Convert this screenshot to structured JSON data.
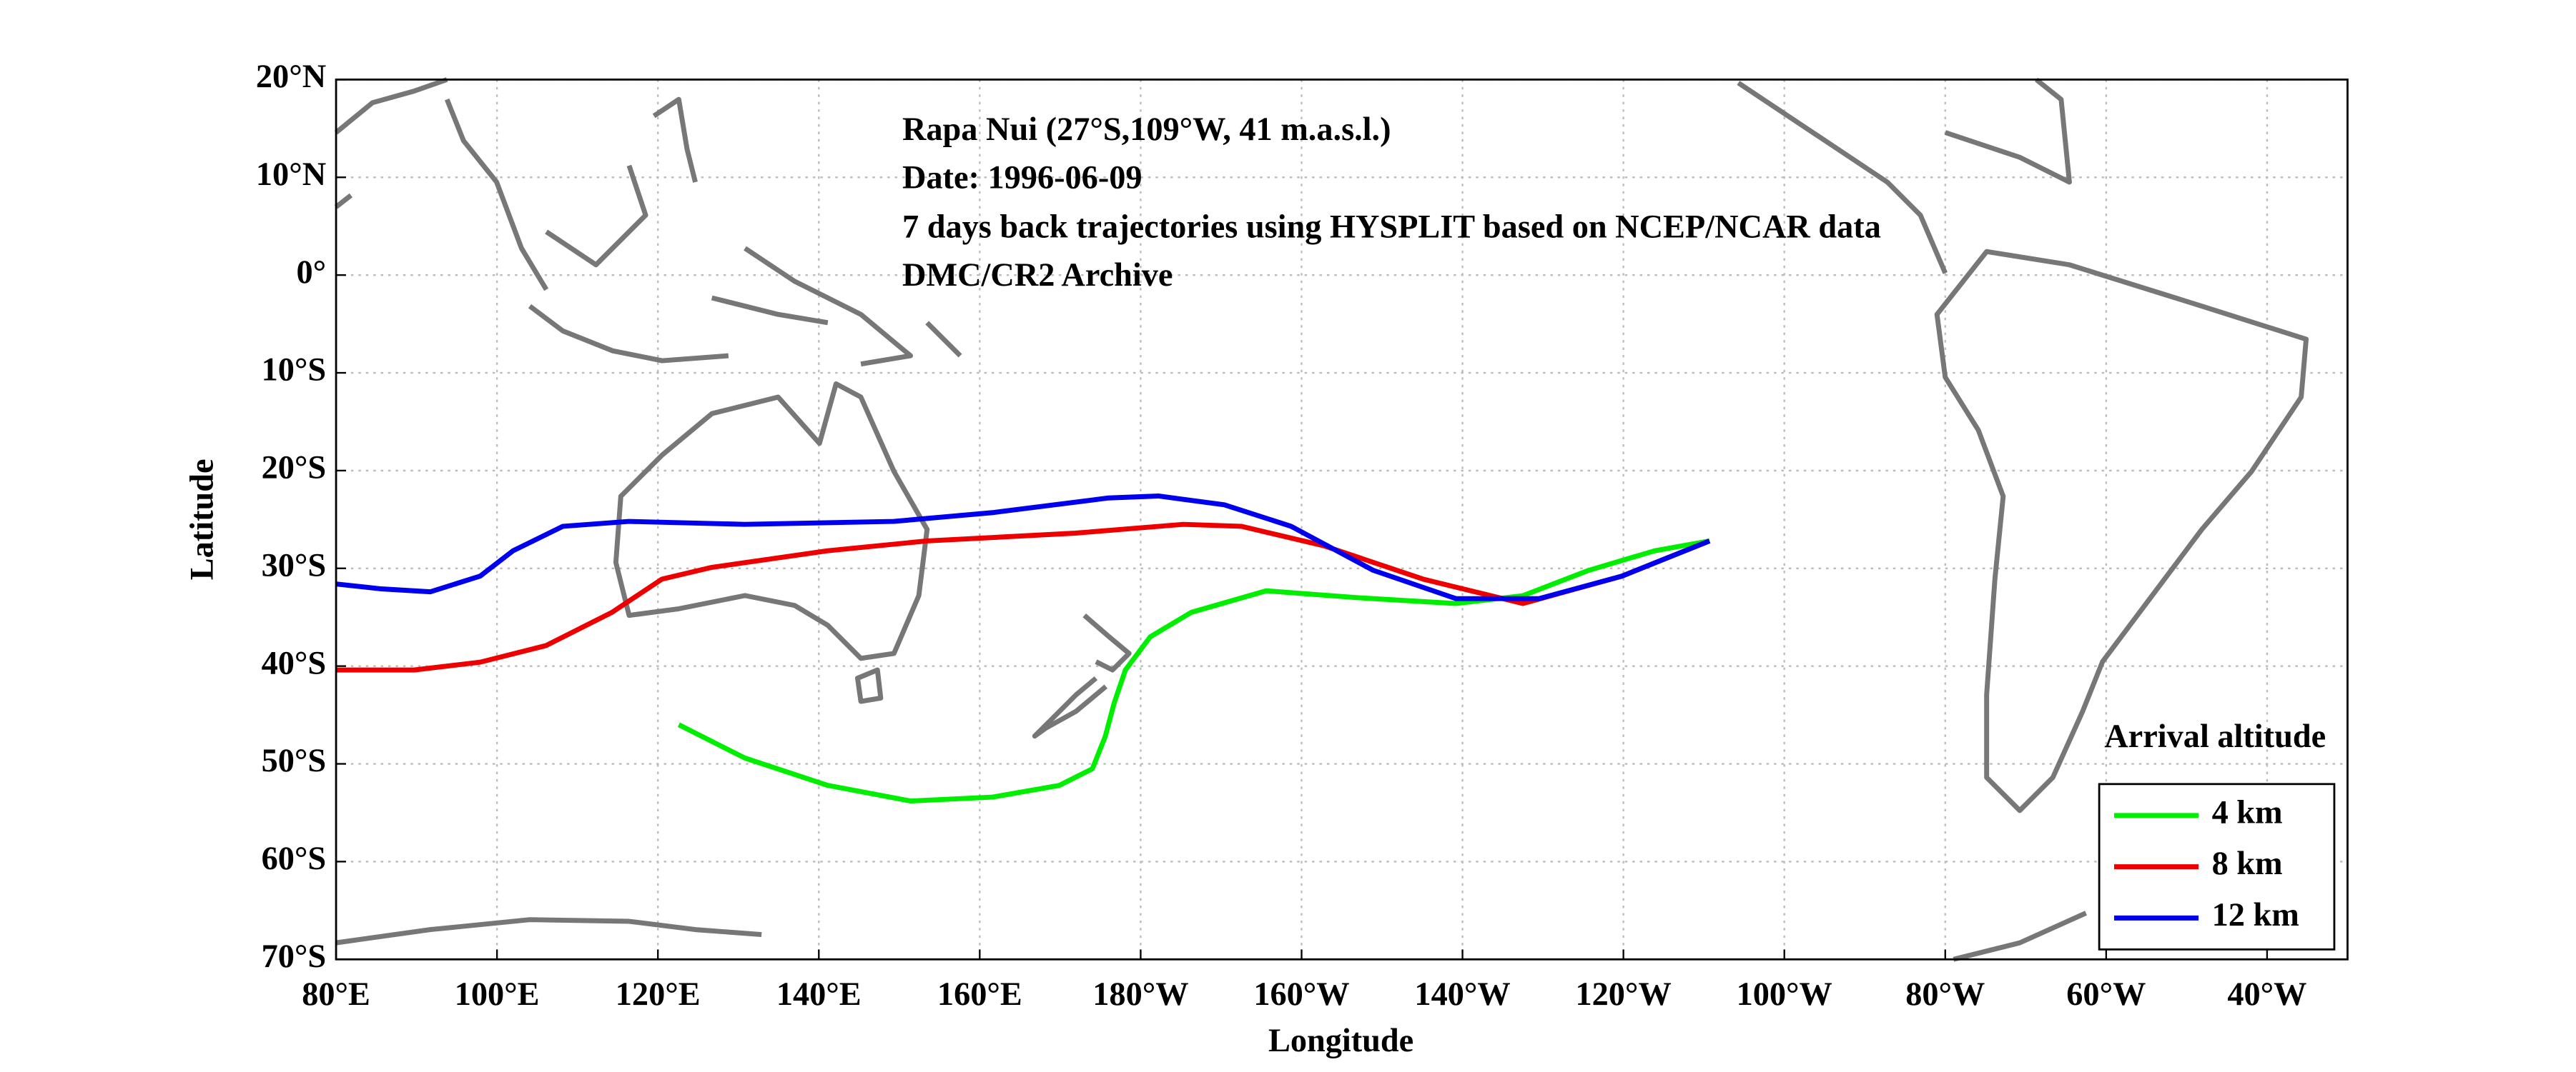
{
  "chart_data": {
    "type": "line",
    "xlabel": "Longitude",
    "ylabel": "Latitude",
    "annotations": [
      "Rapa Nui (27°S,109°W, 41 m.a.s.l.)",
      "Date: 1996-06-09",
      "7 days back trajectories using HYSPLIT based on NCEP/NCAR data",
      "DMC/CR2 Archive"
    ],
    "legend_title": "Arrival altitude",
    "legend": "lower right",
    "grid": true,
    "xlim": [
      80,
      330
    ],
    "ylim": [
      -70,
      20
    ],
    "xticks": [
      {
        "value": 80,
        "label": "80°E"
      },
      {
        "value": 100,
        "label": "100°E"
      },
      {
        "value": 120,
        "label": "120°E"
      },
      {
        "value": 140,
        "label": "140°E"
      },
      {
        "value": 160,
        "label": "160°E"
      },
      {
        "value": 180,
        "label": "180°W"
      },
      {
        "value": 200,
        "label": "160°W"
      },
      {
        "value": 220,
        "label": "140°W"
      },
      {
        "value": 240,
        "label": "120°W"
      },
      {
        "value": 260,
        "label": "100°W"
      },
      {
        "value": 280,
        "label": "80°W"
      },
      {
        "value": 300,
        "label": "60°W"
      },
      {
        "value": 320,
        "label": "40°W"
      }
    ],
    "yticks": [
      {
        "value": -70,
        "label": "70°S"
      },
      {
        "value": -60,
        "label": "60°S"
      },
      {
        "value": -50,
        "label": "50°S"
      },
      {
        "value": -40,
        "label": "40°S"
      },
      {
        "value": -30,
        "label": "30°S"
      },
      {
        "value": -20,
        "label": "20°S"
      },
      {
        "value": -10,
        "label": "10°S"
      },
      {
        "value": 0,
        "label": "0°"
      },
      {
        "value": 10,
        "label": "10°N"
      },
      {
        "value": 20,
        "label": "20°N"
      }
    ],
    "series": [
      {
        "name": "4 km",
        "color": "#00ee00",
        "x": [
          250.7,
          243.9,
          235.7,
          227.5,
          219.2,
          206.9,
          195.6,
          186.3,
          181.2,
          178.1,
          176.7,
          175.6,
          174.0,
          169.9,
          161.6,
          151.4,
          141.1,
          130.8,
          122.6
        ],
        "values": [
          -27.2,
          -28.2,
          -30.2,
          -32.8,
          -33.6,
          -33.0,
          -32.3,
          -34.5,
          -37.0,
          -40.4,
          -43.8,
          -47.2,
          -50.5,
          -52.2,
          -53.4,
          -53.8,
          -52.2,
          -49.4,
          -46.0
        ]
      },
      {
        "name": "8 km",
        "color": "#ee0000",
        "x": [
          250.7,
          239.8,
          227.5,
          215.1,
          202.8,
          192.5,
          185.3,
          171.9,
          153.4,
          141.1,
          126.7,
          120.5,
          114.3,
          106.1,
          97.9,
          89.7,
          80
        ],
        "values": [
          -27.2,
          -30.8,
          -33.6,
          -31.1,
          -27.7,
          -25.7,
          -25.5,
          -26.4,
          -27.2,
          -28.2,
          -29.9,
          -31.1,
          -34.5,
          -37.9,
          -39.6,
          -40.4,
          -40.4
        ]
      },
      {
        "name": "12 km",
        "color": "#0000ee",
        "x": [
          250.7,
          239.8,
          229.5,
          219.2,
          208.9,
          198.7,
          190.4,
          182.2,
          176.0,
          161.6,
          149.3,
          130.8,
          116.4,
          108.2,
          102.0,
          97.9,
          91.7,
          85.6,
          80
        ],
        "values": [
          -27.2,
          -30.8,
          -33.1,
          -33.1,
          -30.2,
          -25.7,
          -23.5,
          -22.6,
          -22.8,
          -24.3,
          -25.2,
          -25.5,
          -25.2,
          -25.7,
          -28.2,
          -30.8,
          -32.4,
          -32.1,
          -31.6
        ]
      }
    ]
  }
}
